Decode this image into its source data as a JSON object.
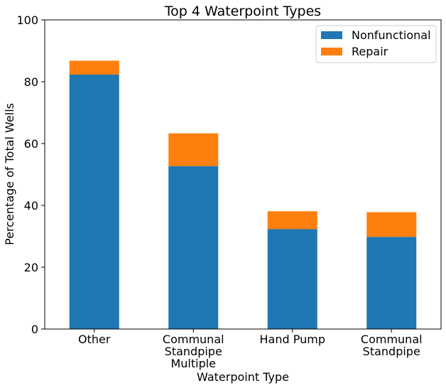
{
  "chart_data": {
    "type": "bar",
    "stacked": true,
    "title": "Top 4 Waterpoint Types",
    "xlabel": "Waterpoint Type",
    "ylabel": "Percentage of Total Wells",
    "categories": [
      [
        "Other"
      ],
      [
        "Communal",
        "Standpipe",
        "Multiple"
      ],
      [
        "Hand Pump"
      ],
      [
        "Communal",
        "Standpipe"
      ]
    ],
    "series": [
      {
        "name": "Nonfunctional",
        "color": "#1f77b4",
        "values": [
          82.3,
          52.7,
          32.3,
          29.8
        ]
      },
      {
        "name": "Repair",
        "color": "#ff7f0e",
        "values": [
          4.5,
          10.6,
          5.8,
          8.0
        ]
      }
    ],
    "ylim": [
      0,
      100
    ],
    "yticks": [
      0,
      20,
      40,
      60,
      80,
      100
    ],
    "grid": false,
    "legend": "top-right"
  }
}
